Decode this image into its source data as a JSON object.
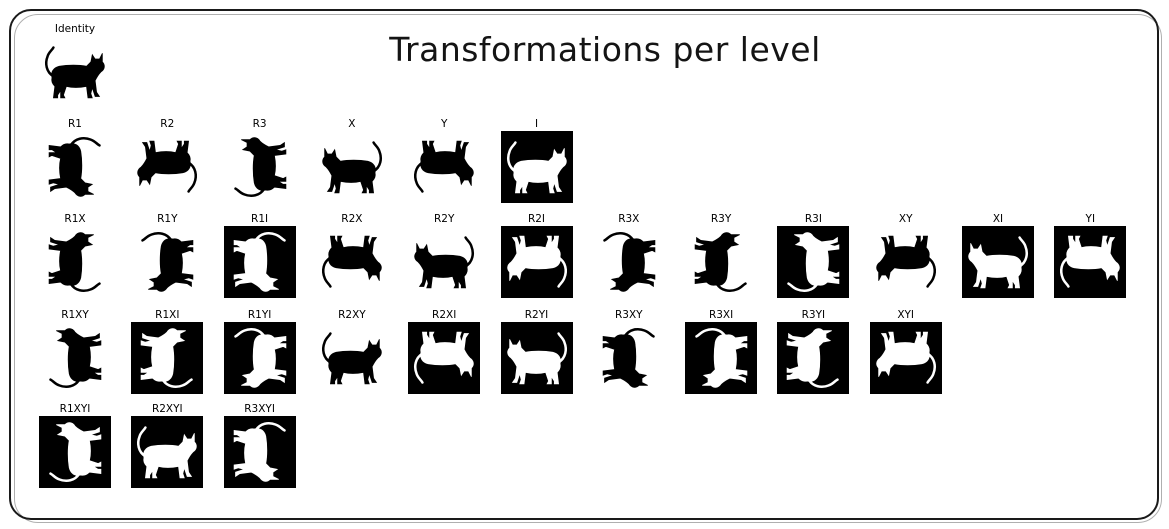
{
  "figure": {
    "title": "Transformations per level",
    "colors": {
      "ink": "#000000",
      "paper": "#ffffff"
    }
  },
  "levels": [
    {
      "level": 0,
      "items": [
        {
          "label": "Identity",
          "ops": ""
        }
      ]
    },
    {
      "level": 1,
      "items": [
        {
          "label": "R1",
          "ops": "R1"
        },
        {
          "label": "R2",
          "ops": "R2"
        },
        {
          "label": "R3",
          "ops": "R3"
        },
        {
          "label": "X",
          "ops": "X"
        },
        {
          "label": "Y",
          "ops": "Y"
        },
        {
          "label": "I",
          "ops": "I"
        }
      ]
    },
    {
      "level": 2,
      "items": [
        {
          "label": "R1X",
          "ops": "R1X"
        },
        {
          "label": "R1Y",
          "ops": "R1Y"
        },
        {
          "label": "R1I",
          "ops": "R1I"
        },
        {
          "label": "R2X",
          "ops": "R2X"
        },
        {
          "label": "R2Y",
          "ops": "R2Y"
        },
        {
          "label": "R2I",
          "ops": "R2I"
        },
        {
          "label": "R3X",
          "ops": "R3X"
        },
        {
          "label": "R3Y",
          "ops": "R3Y"
        },
        {
          "label": "R3I",
          "ops": "R3I"
        },
        {
          "label": "XY",
          "ops": "XY"
        },
        {
          "label": "XI",
          "ops": "XI"
        },
        {
          "label": "YI",
          "ops": "YI"
        }
      ]
    },
    {
      "level": 3,
      "items": [
        {
          "label": "R1XY",
          "ops": "R1XY"
        },
        {
          "label": "R1XI",
          "ops": "R1XI"
        },
        {
          "label": "R1YI",
          "ops": "R1YI"
        },
        {
          "label": "R2XY",
          "ops": "R2XY"
        },
        {
          "label": "R2XI",
          "ops": "R2XI"
        },
        {
          "label": "R2YI",
          "ops": "R2YI"
        },
        {
          "label": "R3XY",
          "ops": "R3XY"
        },
        {
          "label": "R3XI",
          "ops": "R3XI"
        },
        {
          "label": "R3YI",
          "ops": "R3YI"
        },
        {
          "label": "XYI",
          "ops": "XYI"
        }
      ]
    },
    {
      "level": 4,
      "items": [
        {
          "label": "R1XYI",
          "ops": "R1XYI"
        },
        {
          "label": "R2XYI",
          "ops": "R2XYI"
        },
        {
          "label": "R3XYI",
          "ops": "R3XYI"
        }
      ]
    }
  ]
}
